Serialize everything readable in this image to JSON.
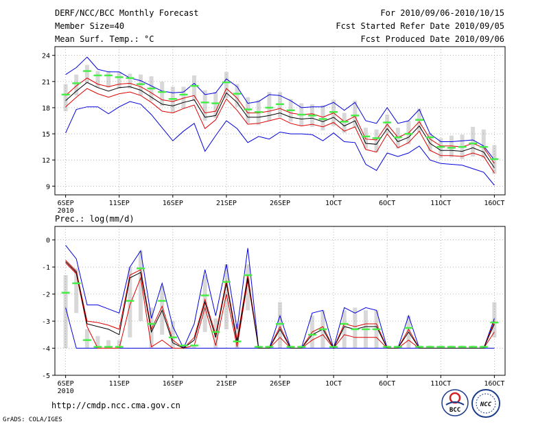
{
  "header": {
    "title": "DERF/NCC/BCC Monthly Forecast",
    "member_size": "Member Size=40",
    "variable": "Mean Surf. Temp.: °C",
    "forecast_range": "For 2010/09/06-2010/10/15",
    "started_refer": "Fcst Started Refer Date 2010/09/05",
    "produced": "Fcst Produced Date 2010/09/06"
  },
  "footer": {
    "url": "http://cmdp.ncc.cma.gov.cn",
    "credit": "GrADS: COLA/IGES",
    "logo_bcc": "BCC",
    "logo_ncc": "NCC"
  },
  "x_ticks": [
    {
      "day": 0,
      "label": "6SEP",
      "sub": "2010"
    },
    {
      "day": 5,
      "label": "11SEP",
      "sub": ""
    },
    {
      "day": 10,
      "label": "16SEP",
      "sub": ""
    },
    {
      "day": 15,
      "label": "21SEP",
      "sub": ""
    },
    {
      "day": 20,
      "label": "26SEP",
      "sub": ""
    },
    {
      "day": 25,
      "label": "1OCT",
      "sub": ""
    },
    {
      "day": 30,
      "label": "6OCT",
      "sub": ""
    },
    {
      "day": 35,
      "label": "11OCT",
      "sub": ""
    },
    {
      "day": 40,
      "label": "16OCT",
      "sub": ""
    }
  ],
  "colors": {
    "box": "#d8d8d8",
    "median": "#44ee44",
    "mean": "#000000",
    "spread": "#dd0000",
    "envelope": "#0000dd",
    "grid": "#888888"
  },
  "chart_data": [
    {
      "type": "box-line",
      "title": "Mean Surf. Temp.: °C",
      "xlabel": "",
      "ylabel": "°C",
      "ylim": [
        8,
        25
      ],
      "yticks": [
        9,
        12,
        15,
        18,
        21,
        24
      ],
      "days": [
        0,
        1,
        2,
        3,
        4,
        5,
        6,
        7,
        8,
        9,
        10,
        11,
        12,
        13,
        14,
        15,
        16,
        17,
        18,
        19,
        20,
        21,
        22,
        23,
        24,
        25,
        26,
        27,
        28,
        29,
        30,
        31,
        32,
        33,
        34,
        35,
        36,
        37,
        38,
        39,
        40
      ],
      "median": [
        19.5,
        20.8,
        22.2,
        21.7,
        21.7,
        21.5,
        21.4,
        20.7,
        20.2,
        19.8,
        19.0,
        19.5,
        20.5,
        18.6,
        18.5,
        20.9,
        19.6,
        17.8,
        17.5,
        18.0,
        18.4,
        17.7,
        17.2,
        17.1,
        16.7,
        17.5,
        16.4,
        17.1,
        14.7,
        14.5,
        16.3,
        14.6,
        15.0,
        16.6,
        14.6,
        13.5,
        13.4,
        13.5,
        13.9,
        13.5,
        12.1
      ],
      "box_low": [
        17.6,
        19.4,
        20.8,
        20.3,
        20.3,
        20.2,
        20.2,
        19.4,
        18.8,
        18.2,
        17.4,
        17.9,
        18.8,
        16.5,
        16.8,
        19.1,
        18.1,
        16.2,
        16.0,
        16.5,
        16.9,
        16.4,
        15.9,
        15.8,
        15.4,
        15.9,
        15.1,
        15.7,
        13.3,
        12.9,
        15.0,
        13.3,
        13.8,
        15.2,
        13.0,
        12.2,
        12.3,
        12.1,
        12.4,
        12.2,
        10.4
      ],
      "box_high": [
        20.7,
        21.8,
        22.9,
        22.2,
        22.2,
        22.1,
        21.9,
        21.8,
        21.6,
        21.0,
        20.4,
        20.4,
        21.7,
        20.0,
        19.8,
        22.1,
        20.7,
        19.2,
        18.9,
        19.8,
        19.8,
        19.0,
        18.5,
        18.4,
        18.3,
        18.9,
        17.4,
        18.8,
        15.7,
        15.5,
        17.2,
        15.7,
        16.5,
        17.9,
        15.1,
        14.5,
        14.8,
        14.9,
        15.8,
        15.5,
        13.7
      ],
      "mean": [
        18.8,
        19.9,
        20.9,
        20.3,
        19.9,
        20.3,
        20.4,
        20.0,
        19.2,
        18.4,
        18.2,
        18.6,
        18.9,
        16.9,
        17.1,
        19.7,
        18.6,
        16.9,
        16.9,
        17.1,
        17.4,
        16.9,
        16.7,
        16.8,
        16.4,
        16.9,
        15.9,
        16.5,
        13.9,
        13.8,
        15.6,
        14.1,
        14.6,
        15.9,
        13.9,
        13.1,
        13.1,
        13.0,
        13.4,
        12.9,
        11.1
      ],
      "spread_high": [
        19.4,
        20.5,
        21.4,
        20.7,
        20.4,
        20.7,
        20.8,
        20.4,
        19.7,
        18.9,
        18.7,
        19.1,
        19.4,
        17.4,
        17.6,
        20.2,
        19.1,
        17.4,
        17.4,
        17.6,
        17.9,
        17.4,
        17.2,
        17.3,
        16.9,
        17.4,
        16.4,
        17.0,
        14.4,
        14.3,
        16.1,
        14.6,
        15.1,
        16.4,
        14.4,
        13.6,
        13.6,
        13.5,
        13.9,
        13.4,
        11.6
      ],
      "spread_low": [
        18.1,
        19.2,
        20.2,
        19.6,
        19.2,
        19.6,
        19.8,
        19.4,
        18.6,
        17.6,
        17.4,
        17.9,
        18.3,
        15.6,
        16.6,
        19.0,
        17.7,
        16.1,
        16.2,
        16.5,
        16.8,
        16.2,
        15.9,
        16.1,
        15.8,
        16.3,
        15.3,
        15.8,
        13.2,
        12.9,
        15.0,
        13.4,
        14.0,
        15.3,
        13.1,
        12.5,
        12.5,
        12.4,
        12.8,
        12.4,
        10.5
      ],
      "env_high": [
        21.8,
        22.6,
        23.8,
        22.4,
        22.1,
        22.1,
        21.4,
        21.1,
        20.5,
        19.9,
        19.7,
        19.8,
        20.8,
        19.5,
        19.7,
        21.3,
        20.4,
        18.5,
        18.7,
        19.5,
        19.4,
        18.8,
        18.0,
        18.1,
        18.1,
        18.6,
        17.7,
        18.6,
        16.5,
        16.2,
        18.0,
        16.2,
        16.5,
        17.8,
        15.0,
        14.1,
        14.1,
        14.2,
        14.3,
        13.6,
        12.0
      ],
      "env_low": [
        15.1,
        17.8,
        18.1,
        18.1,
        17.3,
        18.1,
        18.7,
        18.4,
        17.2,
        15.7,
        14.2,
        15.3,
        16.2,
        13.0,
        14.8,
        16.5,
        15.6,
        14.0,
        14.7,
        14.4,
        15.2,
        15.0,
        15.0,
        14.9,
        14.2,
        15.1,
        14.1,
        14.0,
        11.5,
        10.8,
        12.8,
        12.4,
        12.8,
        13.6,
        12.0,
        11.6,
        11.5,
        11.4,
        11.0,
        10.6,
        9.1
      ]
    },
    {
      "type": "box-line",
      "title": "Prec.: log(mm/d)",
      "xlabel": "",
      "ylabel": "log(mm/d)",
      "ylim": [
        -5,
        0.5
      ],
      "yticks": [
        -5,
        -4,
        -3,
        -2,
        -1,
        0
      ],
      "days": [
        0,
        1,
        2,
        3,
        4,
        5,
        6,
        7,
        8,
        9,
        10,
        11,
        12,
        13,
        14,
        15,
        16,
        17,
        18,
        19,
        20,
        21,
        22,
        23,
        24,
        25,
        26,
        27,
        28,
        29,
        30,
        31,
        32,
        33,
        34,
        35,
        36,
        37,
        38,
        39,
        40
      ],
      "median": [
        -1.95,
        -1.6,
        -3.7,
        -3.95,
        -3.95,
        -3.95,
        -2.25,
        -1.05,
        -3.1,
        -2.25,
        -3.6,
        -3.9,
        -3.9,
        -2.05,
        -3.4,
        -1.55,
        -3.75,
        -1.3,
        -3.95,
        -3.95,
        -3.1,
        -3.95,
        -3.95,
        -3.5,
        -3.3,
        -3.95,
        -3.1,
        -3.3,
        -3.3,
        -3.3,
        -3.95,
        -3.95,
        -3.25,
        -3.95,
        -3.95,
        -3.95,
        -3.95,
        -3.95,
        -3.95,
        -3.95,
        -3.05
      ],
      "box_low": [
        -4.0,
        -2.7,
        -4.0,
        -4.0,
        -4.0,
        -4.0,
        -3.6,
        -3.0,
        -4.0,
        -3.5,
        -4.0,
        -4.0,
        -4.0,
        -3.4,
        -4.0,
        -3.3,
        -4.0,
        -2.6,
        -4.0,
        -4.0,
        -4.0,
        -4.0,
        -4.0,
        -4.0,
        -4.0,
        -4.0,
        -4.0,
        -4.0,
        -4.0,
        -4.0,
        -4.0,
        -4.0,
        -4.0,
        -4.0,
        -4.0,
        -4.0,
        -4.0,
        -4.0,
        -4.0,
        -4.0,
        -3.6
      ],
      "box_high": [
        -1.3,
        -1.05,
        -3.3,
        -3.55,
        -3.7,
        -3.7,
        -1.0,
        -0.4,
        -2.5,
        -1.7,
        -3.0,
        -3.9,
        -3.9,
        -1.3,
        -2.9,
        -0.9,
        -3.1,
        -0.9,
        -3.9,
        -3.9,
        -2.3,
        -3.9,
        -3.9,
        -2.8,
        -2.6,
        -3.9,
        -2.6,
        -2.5,
        -2.6,
        -2.6,
        -3.9,
        -3.9,
        -2.8,
        -3.9,
        -3.9,
        -3.9,
        -3.9,
        -3.9,
        -3.9,
        -3.9,
        -2.3
      ],
      "mean": [
        -0.8,
        -1.2,
        -3.1,
        -3.2,
        -3.3,
        -3.5,
        -1.4,
        -1.2,
        -3.4,
        -2.6,
        -3.8,
        -4.0,
        -3.7,
        -2.3,
        -3.6,
        -1.6,
        -3.8,
        -1.4,
        -4.0,
        -4.0,
        -3.3,
        -4.0,
        -4.0,
        -3.5,
        -3.3,
        -4.0,
        -3.2,
        -3.3,
        -3.2,
        -3.2,
        -4.0,
        -4.0,
        -3.4,
        -4.0,
        -4.0,
        -4.0,
        -4.0,
        -4.0,
        -4.0,
        -4.0,
        -3.1
      ],
      "spread_high": [
        -0.75,
        -1.15,
        -3.0,
        -3.05,
        -3.15,
        -3.3,
        -1.3,
        -1.1,
        -3.3,
        -2.45,
        -3.7,
        -4.0,
        -3.6,
        -2.2,
        -3.5,
        -1.5,
        -3.7,
        -1.3,
        -4.0,
        -4.0,
        -3.2,
        -4.0,
        -4.0,
        -3.4,
        -3.2,
        -4.0,
        -3.1,
        -3.2,
        -3.1,
        -3.1,
        -4.0,
        -4.0,
        -3.3,
        -4.0,
        -4.0,
        -4.0,
        -4.0,
        -4.0,
        -4.0,
        -4.0,
        -3.0
      ],
      "spread_low": [
        -0.85,
        -1.25,
        -3.2,
        -4.0,
        -4.0,
        -4.0,
        -2.4,
        -1.4,
        -3.95,
        -3.7,
        -4.0,
        -4.0,
        -3.9,
        -2.5,
        -3.9,
        -2.0,
        -3.95,
        -1.5,
        -4.0,
        -4.0,
        -3.6,
        -4.0,
        -4.0,
        -3.7,
        -3.5,
        -4.0,
        -3.5,
        -3.6,
        -3.6,
        -3.6,
        -4.0,
        -4.0,
        -3.7,
        -4.0,
        -4.0,
        -4.0,
        -4.0,
        -4.0,
        -4.0,
        -4.0,
        -3.4
      ],
      "env_high": [
        -0.2,
        -0.7,
        -2.4,
        -2.4,
        -2.55,
        -2.7,
        -1.0,
        -0.4,
        -2.9,
        -1.6,
        -3.2,
        -4.0,
        -3.1,
        -1.1,
        -2.8,
        -0.9,
        -3.3,
        -0.3,
        -4.0,
        -4.0,
        -2.8,
        -4.0,
        -4.0,
        -2.7,
        -2.6,
        -4.0,
        -2.5,
        -2.7,
        -2.5,
        -2.6,
        -4.0,
        -4.0,
        -2.8,
        -4.0,
        -4.0,
        -4.0,
        -4.0,
        -4.0,
        -4.0,
        -4.0,
        -2.9
      ],
      "env_low": [
        -2.5,
        -4.0,
        -4.0,
        -4.0,
        -4.0,
        -4.0,
        -4.0,
        -4.0,
        -4.0,
        -4.0,
        -4.0,
        -4.0,
        -4.0,
        -4.0,
        -4.0,
        -4.0,
        -4.0,
        -4.0,
        -4.0,
        -4.0,
        -4.0,
        -4.0,
        -4.0,
        -4.0,
        -4.0,
        -4.0,
        -4.0,
        -4.0,
        -4.0,
        -4.0,
        -4.0,
        -4.0,
        -4.0,
        -4.0,
        -4.0,
        -4.0,
        -4.0,
        -4.0,
        -4.0,
        -4.0,
        -4.0
      ]
    }
  ]
}
